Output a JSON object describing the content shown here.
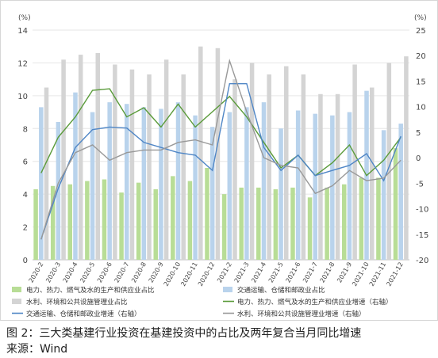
{
  "chart_data": {
    "type": "bar",
    "y_left_unit": "(%)",
    "y_right_unit": "(%)",
    "ylim_left": [
      0,
      14
    ],
    "ylim_right": [
      -20,
      25
    ],
    "left_ticks": [
      0,
      2,
      4,
      6,
      8,
      10,
      12,
      14
    ],
    "right_ticks": [
      -20,
      -15,
      -10,
      -5,
      0,
      5,
      10,
      15,
      20,
      25
    ],
    "categories": [
      "2020-2",
      "2020-3",
      "2020-4",
      "2020-5",
      "2020-6",
      "2020-7",
      "2020-8",
      "2020-9",
      "2020-10",
      "2020-11",
      "2020-12",
      "2021-2",
      "2021-3",
      "2021-4",
      "2021-5",
      "2021-6",
      "2021-7",
      "2021-8",
      "2021-9",
      "2021-10",
      "2021-11",
      "2021-12"
    ],
    "bar_series": [
      {
        "name": "电力、热力、燃气及水的生产和供应业占比",
        "color": "#b8dd96",
        "values": [
          4.3,
          4.5,
          4.6,
          4.8,
          4.9,
          4.1,
          4.7,
          4.3,
          5.1,
          4.8,
          5.6,
          4.0,
          4.4,
          4.4,
          4.3,
          4.4,
          3.8,
          4.4,
          4.6,
          5.0,
          5.0,
          6.8
        ]
      },
      {
        "name": "交通运输、仓储和邮政业占比",
        "color": "#b9d3ec",
        "values": [
          9.3,
          8.4,
          10.2,
          9.0,
          9.6,
          9.5,
          9.3,
          9.2,
          9.6,
          8.8,
          8.1,
          9.0,
          9.3,
          9.6,
          8.0,
          9.1,
          8.9,
          8.8,
          9.0,
          10.3,
          7.9,
          8.3
        ]
      },
      {
        "name": "水利、环境和公共设施管理业占比",
        "color": "#d4d4d4",
        "values": [
          10.5,
          12.2,
          12.5,
          12.6,
          11.9,
          11.6,
          11.3,
          12.2,
          11.3,
          13.0,
          12.9,
          11.0,
          12.0,
          11.3,
          11.8,
          11.3,
          10.1,
          10.1,
          11.9,
          10.5,
          12.0,
          12.4
        ]
      }
    ],
    "line_series": [
      {
        "name": "电力、热力、燃气及水的生产和供应业增速（右轴）",
        "color": "#5a9b3a",
        "values": [
          -3.0,
          4.0,
          8.0,
          13.2,
          13.5,
          8.0,
          9.8,
          6.0,
          10.5,
          6.0,
          9.0,
          12.0,
          8.0,
          3.0,
          -2.0,
          0.5,
          -3.5,
          -1.0,
          2.5,
          -3.5,
          -0.5,
          4.0
        ]
      },
      {
        "name": "交通运输、仓储和邮政业增速（右轴）",
        "color": "#4f86c6",
        "values": [
          -16.0,
          -6.0,
          2.0,
          5.5,
          6.0,
          5.8,
          3.0,
          2.0,
          1.0,
          0.5,
          -2.5,
          14.5,
          14.5,
          2.0,
          -2.5,
          0.5,
          -3.5,
          -2.5,
          -1.5,
          0.8,
          -4.5,
          4.2
        ]
      },
      {
        "name": "水利、环境和公共设施管理业增速（右轴）",
        "color": "#999999",
        "values": [
          -16.0,
          -5.0,
          1.0,
          2.5,
          -0.5,
          1.0,
          1.5,
          1.5,
          3.0,
          3.5,
          2.5,
          19.0,
          9.0,
          0.0,
          -1.5,
          -2.0,
          -7.0,
          -5.5,
          -2.5,
          -4.5,
          -4.0,
          -0.5
        ]
      }
    ]
  },
  "caption": {
    "line1": "图 2：三大类基建行业投资在基建投资中的占比及两年复合当月同比增速",
    "line2": "来源：Wind"
  }
}
